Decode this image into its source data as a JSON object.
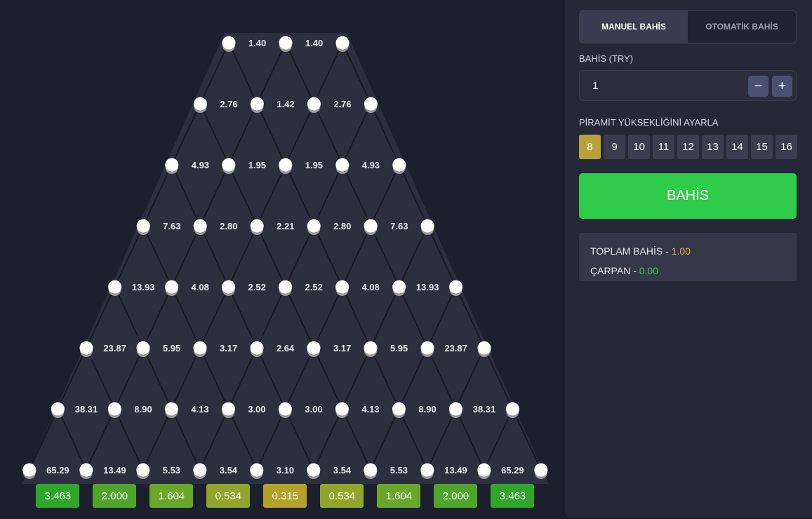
{
  "board": {
    "rows": [
      [
        "1.40",
        "1.40"
      ],
      [
        "2.76",
        "1.42",
        "2.76"
      ],
      [
        "4.93",
        "1.95",
        "1.95",
        "4.93"
      ],
      [
        "7.63",
        "2.80",
        "2.21",
        "2.80",
        "7.63"
      ],
      [
        "13.93",
        "4.08",
        "2.52",
        "2.52",
        "4.08",
        "13.93"
      ],
      [
        "23.87",
        "5.95",
        "3.17",
        "2.64",
        "3.17",
        "5.95",
        "23.87"
      ],
      [
        "38.31",
        "8.90",
        "4.13",
        "3.00",
        "3.00",
        "4.13",
        "8.90",
        "38.31"
      ],
      [
        "65.29",
        "13.49",
        "5.53",
        "3.54",
        "3.10",
        "3.54",
        "5.53",
        "13.49",
        "65.29"
      ]
    ],
    "buckets": [
      {
        "value": "3.463",
        "color": "#2fa52a"
      },
      {
        "value": "2.000",
        "color": "#4fa52a"
      },
      {
        "value": "1.604",
        "color": "#6aa62a"
      },
      {
        "value": "0.534",
        "color": "#90a52a"
      },
      {
        "value": "0.315",
        "color": "#b3a22a"
      },
      {
        "value": "0.534",
        "color": "#90a52a"
      },
      {
        "value": "1.604",
        "color": "#6aa62a"
      },
      {
        "value": "2.000",
        "color": "#4fa52a"
      },
      {
        "value": "3.463",
        "color": "#2fa52a"
      }
    ]
  },
  "panel": {
    "tabs": [
      {
        "label": "MANUEL BAHİS",
        "active": true
      },
      {
        "label": "OTOMATİK BAHİS",
        "active": false
      }
    ],
    "bet_label": "BAHİS (TRY)",
    "bet_value": "1",
    "minus": "−",
    "plus": "+",
    "height_label": "PİRAMİT YÜKSEKLİĞİNİ AYARLA",
    "heights": [
      "8",
      "9",
      "10",
      "11",
      "12",
      "13",
      "14",
      "15",
      "16"
    ],
    "selected_height": "8",
    "bet_button": "BAHİS",
    "total_label": "TOPLAM BAHİS - ",
    "total_value": "1.00",
    "multiplier_label": "ÇARPAN - ",
    "multiplier_value": "0.00",
    "colors": {
      "accent_gold": "#e0b63a",
      "accent_green": "#2ecc4a"
    }
  }
}
